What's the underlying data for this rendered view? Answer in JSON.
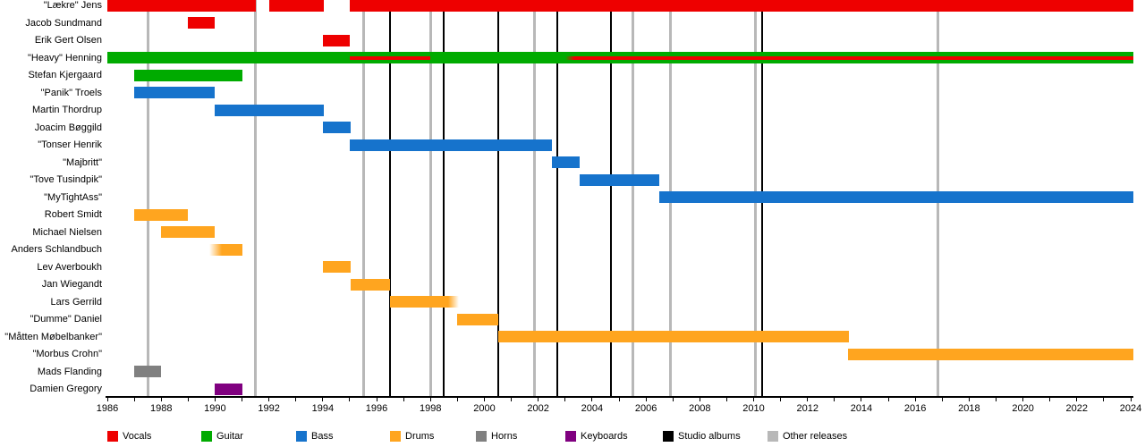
{
  "chart_data": {
    "type": "bar",
    "subtype": "band-member-timeline-gantt",
    "title": "",
    "x_axis": {
      "min": 1986,
      "max": 2024,
      "minor_tick_step": 1,
      "label_step": 2,
      "tick_labels": [
        "1986",
        "1988",
        "1990",
        "1992",
        "1994",
        "1996",
        "1998",
        "2000",
        "2002",
        "2004",
        "2006",
        "2008",
        "2010",
        "2012",
        "2014",
        "2016",
        "2018",
        "2020",
        "2022",
        "2024"
      ]
    },
    "palette": {
      "Vocals": "#EE0000",
      "Guitar": "#00AB00",
      "Bass": "#1673CC",
      "Drums": "#FFA51F",
      "Horns": "#808080",
      "Keyboards": "#800080",
      "Studio albums": "#000000",
      "Other releases": "#B8B8B8"
    },
    "legend": [
      "Vocals",
      "Guitar",
      "Bass",
      "Drums",
      "Horns",
      "Keyboards",
      "Studio albums",
      "Other releases"
    ],
    "events": {
      "studio_albums": [
        1996.5,
        1998.5,
        2000.5,
        2002.7,
        2004.7,
        2010.3
      ],
      "other_releases": [
        1987.5,
        1991.5,
        1995.5,
        1998.0,
        2001.85,
        2005.5,
        2006.9,
        2010.05,
        2016.85
      ]
    },
    "members": [
      {
        "name": "\"Lækre\" Jens",
        "instrument": "Vocals",
        "segments": [
          {
            "start": 1986.0,
            "end": 1991.5
          },
          {
            "start": 1992.0,
            "end": 1994.05
          },
          {
            "start": 1995.0,
            "end": 2024.1
          }
        ]
      },
      {
        "name": "Jacob Sundmand",
        "instrument": "Vocals",
        "segments": [
          {
            "start": 1989.0,
            "end": 1990.0
          }
        ]
      },
      {
        "name": "Erik Gert Olsen",
        "instrument": "Vocals",
        "segments": [
          {
            "start": 1994.0,
            "end": 1995.0
          }
        ]
      },
      {
        "name": "\"Heavy\" Henning",
        "instrument": "Guitar",
        "segments": [
          {
            "start": 1986.0,
            "end": 2024.1
          }
        ],
        "overlay": {
          "instrument": "Vocals",
          "segments": [
            {
              "start": 1995.0,
              "end": 1998.0
            },
            {
              "start": 2003.0,
              "end": 2024.1,
              "fade_in": true
            }
          ]
        }
      },
      {
        "name": "Stefan Kjergaard",
        "instrument": "Guitar",
        "segments": [
          {
            "start": 1987.0,
            "end": 1991.0
          }
        ]
      },
      {
        "name": "\"Panik\" Troels",
        "instrument": "Bass",
        "segments": [
          {
            "start": 1987.0,
            "end": 1990.0
          }
        ]
      },
      {
        "name": "Martin Thordrup",
        "instrument": "Bass",
        "segments": [
          {
            "start": 1990.0,
            "end": 1994.05
          }
        ]
      },
      {
        "name": "Joacim Bøggild",
        "instrument": "Bass",
        "segments": [
          {
            "start": 1994.0,
            "end": 1995.05
          }
        ]
      },
      {
        "name": "\"Tonser Henrik",
        "instrument": "Bass",
        "segments": [
          {
            "start": 1995.0,
            "end": 2002.5
          }
        ]
      },
      {
        "name": "\"Majbritt\"",
        "instrument": "Bass",
        "segments": [
          {
            "start": 2002.5,
            "end": 2003.55
          }
        ]
      },
      {
        "name": "\"Tove Tusindpik\"",
        "instrument": "Bass",
        "segments": [
          {
            "start": 2003.55,
            "end": 2006.5
          }
        ]
      },
      {
        "name": "\"MyTightAss\"",
        "instrument": "Bass",
        "segments": [
          {
            "start": 2006.5,
            "end": 2024.1
          }
        ]
      },
      {
        "name": "Robert Smidt",
        "instrument": "Drums",
        "segments": [
          {
            "start": 1987.0,
            "end": 1989.0
          }
        ]
      },
      {
        "name": "Michael Nielsen",
        "instrument": "Drums",
        "segments": [
          {
            "start": 1988.0,
            "end": 1990.0
          }
        ]
      },
      {
        "name": "Anders Schlandbuch",
        "instrument": "Drums",
        "segments": [
          {
            "start": 1989.8,
            "end": 1991.0,
            "fade_in": true
          }
        ]
      },
      {
        "name": "Lev Averboukh",
        "instrument": "Drums",
        "segments": [
          {
            "start": 1994.0,
            "end": 1995.05
          }
        ]
      },
      {
        "name": "Jan Wiegandt",
        "instrument": "Drums",
        "segments": [
          {
            "start": 1995.05,
            "end": 1996.5
          }
        ]
      },
      {
        "name": "Lars Gerrild",
        "instrument": "Drums",
        "segments": [
          {
            "start": 1996.5,
            "end": 1999.05,
            "fade_out": true
          }
        ]
      },
      {
        "name": "\"Dumme\" Daniel",
        "instrument": "Drums",
        "segments": [
          {
            "start": 1999.0,
            "end": 2000.5
          }
        ]
      },
      {
        "name": "\"Måtten Møbelbanker\"",
        "instrument": "Drums",
        "segments": [
          {
            "start": 2000.5,
            "end": 2013.55
          }
        ]
      },
      {
        "name": "\"Morbus Crohn\"",
        "instrument": "Drums",
        "segments": [
          {
            "start": 2013.5,
            "end": 2024.1
          }
        ]
      },
      {
        "name": "Mads Flanding",
        "instrument": "Horns",
        "segments": [
          {
            "start": 1987.0,
            "end": 1988.0
          }
        ]
      },
      {
        "name": "Damien Gregory",
        "instrument": "Keyboards",
        "segments": [
          {
            "start": 1990.0,
            "end": 1991.0
          }
        ]
      }
    ]
  }
}
